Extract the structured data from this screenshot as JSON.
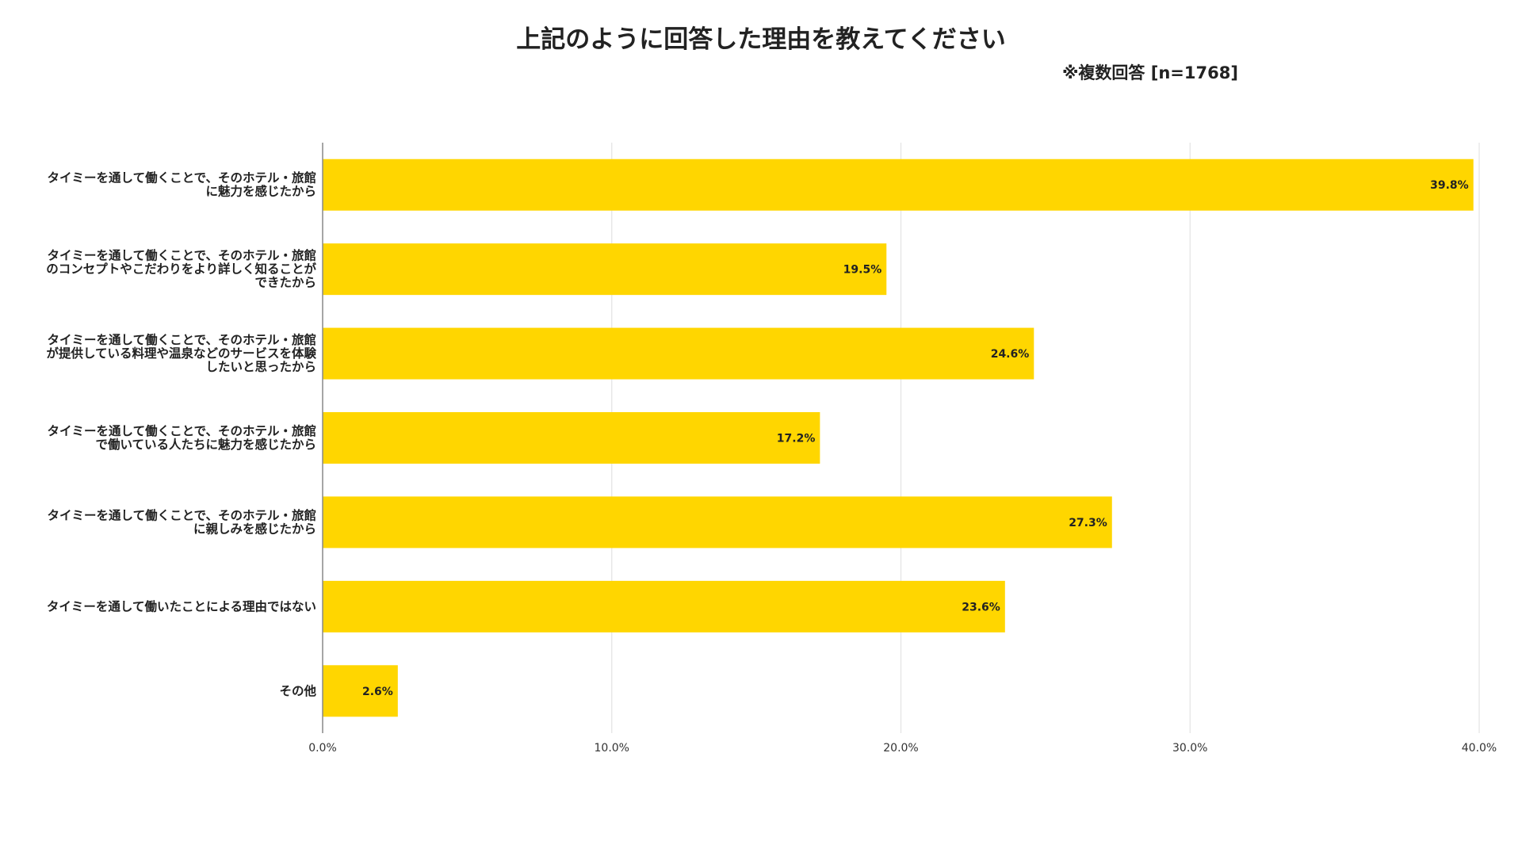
{
  "chart_data": {
    "type": "bar",
    "orientation": "horizontal",
    "title": "上記のように回答した理由を教えてください",
    "subtitle": "※複数回答 [n=1768]",
    "xlabel": "",
    "ylabel": "",
    "categories": [
      [
        "タイミーを通して働くことで、そのホテル・旅館",
        "に魅力を感じたから"
      ],
      [
        "タイミーを通して働くことで、そのホテル・旅館",
        "のコンセプトやこだわりをより詳しく知ることが",
        "できたから"
      ],
      [
        "タイミーを通して働くことで、そのホテル・旅館",
        "が提供している料理や温泉などのサービスを体験",
        "したいと思ったから"
      ],
      [
        "タイミーを通して働くことで、そのホテル・旅館",
        "で働いている人たちに魅力を感じたから"
      ],
      [
        "タイミーを通して働くことで、そのホテル・旅館",
        "に親しみを感じたから"
      ],
      [
        "タイミーを通して働いたことによる理由ではない"
      ],
      [
        "その他"
      ]
    ],
    "values": [
      39.8,
      19.5,
      24.6,
      17.2,
      27.3,
      23.6,
      2.6
    ],
    "value_labels": [
      "39.8%",
      "19.5%",
      "24.6%",
      "17.2%",
      "27.3%",
      "23.6%",
      "2.6%"
    ],
    "xlim": [
      0,
      40
    ],
    "x_ticks": [
      0,
      10,
      20,
      30,
      40
    ],
    "x_tick_labels": [
      "0.0%",
      "10.0%",
      "20.0%",
      "30.0%",
      "40.0%"
    ],
    "grid": "vertical",
    "legend": "none",
    "bar_color": "#FFD600",
    "grid_color": "#e3e3e3",
    "axis_color": "#888888"
  }
}
